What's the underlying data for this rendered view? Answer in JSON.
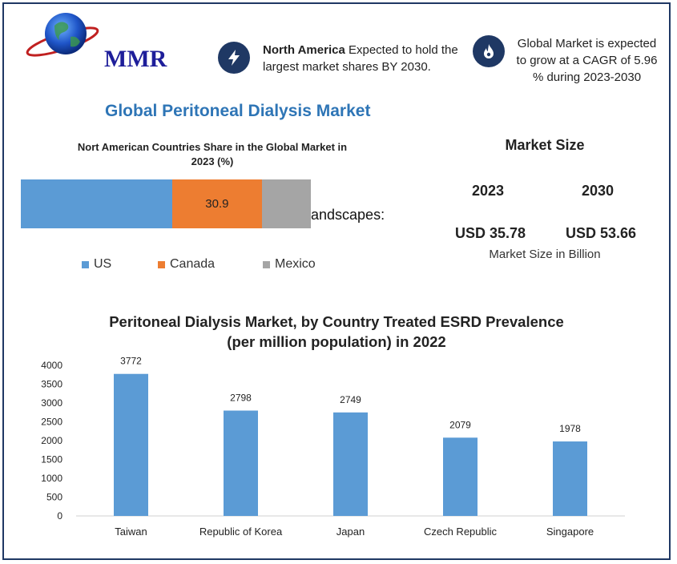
{
  "brand": {
    "logo_text": "MMR"
  },
  "info_boxes": [
    {
      "icon": "lightning-icon",
      "bold": "North America",
      "text": " Expected to hold the largest market shares BY 2030."
    },
    {
      "icon": "flame-icon",
      "text": "Global Market is expected to grow at a CAGR of 5.96 % during 2023-2030"
    }
  ],
  "main_title": "Global Peritoneal  Dialysis Market",
  "share_chart": {
    "title": "Nort American Countries Share in the Global Market in 2023  (%)",
    "stray_text": "andscapes:",
    "label": "30.9",
    "legend": [
      "US",
      "Canada",
      "Mexico"
    ],
    "colors": [
      "#5b9bd5",
      "#ed7d31",
      "#a5a5a5"
    ]
  },
  "market_size": {
    "title": "Market Size",
    "year_a": "2023",
    "year_b": "2030",
    "value_a": "USD 35.78",
    "value_b": "USD 53.66",
    "note": "Market Size in Billion"
  },
  "bar_title": "Peritoneal Dialysis Market, by Country Treated ESRD Prevalence (per million population) in 2022",
  "chart_data": [
    {
      "type": "bar",
      "stacked": true,
      "title": "Nort American Countries Share in the Global Market in 2023  (%)",
      "series": [
        {
          "name": "US",
          "values": [
            52.2
          ]
        },
        {
          "name": "Canada",
          "values": [
            30.9
          ]
        },
        {
          "name": "Mexico",
          "values": [
            16.9
          ]
        }
      ],
      "data_labels": [
        "",
        "30.9",
        ""
      ],
      "legend": "bottom"
    },
    {
      "type": "bar",
      "title": "Peritoneal Dialysis Market, by Country Treated ESRD Prevalence (per million population) in 2022",
      "categories": [
        "Taiwan",
        "Republic of Korea",
        "Japan",
        "Czech Republic",
        "Singapore"
      ],
      "values": [
        3772,
        2798,
        2749,
        2079,
        1978
      ],
      "yticks": [
        0,
        500,
        1000,
        1500,
        2000,
        2500,
        3000,
        3500,
        4000
      ],
      "ylim": [
        0,
        4000
      ],
      "color": "#5b9bd5",
      "xlabel": "",
      "ylabel": ""
    }
  ]
}
